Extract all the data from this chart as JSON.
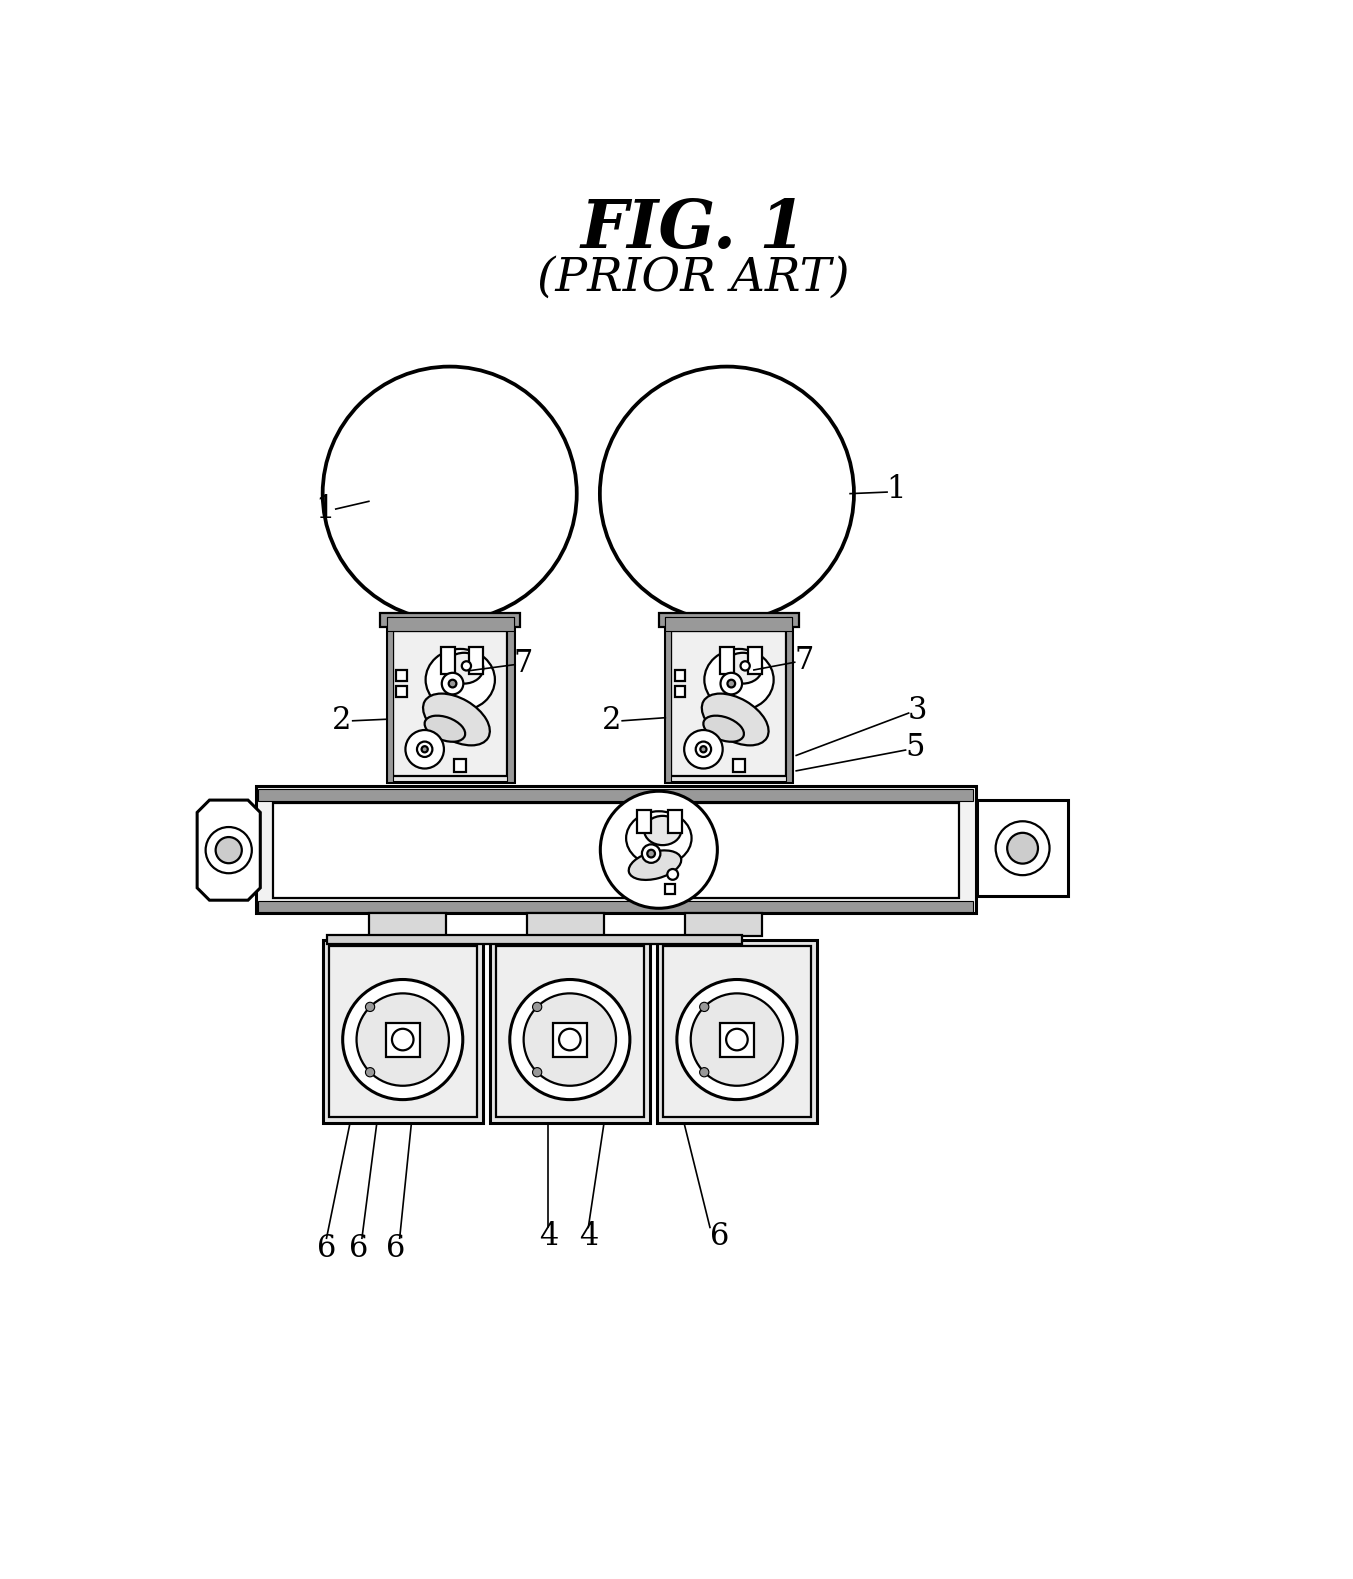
{
  "title": "FIG. 1",
  "subtitle": "(PRIOR ART)",
  "bg": "#ffffff",
  "lw": 1.6,
  "lw_thick": 2.2,
  "black": "#000000",
  "hatch_color": "#888888",
  "gray_light": "#e8e8e8",
  "gray_med": "#cccccc",
  "gray_dark": "#999999",
  "fig_w": 13.53,
  "fig_h": 15.79
}
